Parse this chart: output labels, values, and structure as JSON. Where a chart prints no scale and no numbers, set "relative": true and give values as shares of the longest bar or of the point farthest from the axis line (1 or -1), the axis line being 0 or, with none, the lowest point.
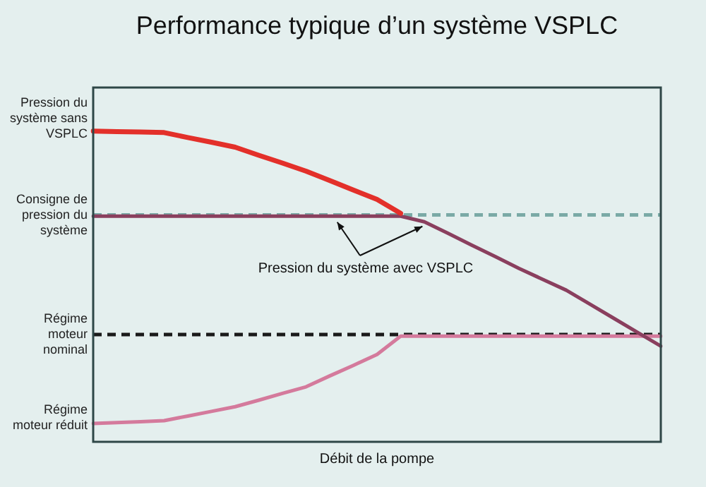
{
  "chart_data": {
    "type": "line",
    "title": "Performance typique d’un système VSPLC",
    "xlabel": "Débit de la pompe",
    "relative": true,
    "tick_labels": false,
    "grid": false,
    "legend": false,
    "marker": "none",
    "line_style": "solid",
    "categories": [
      null,
      null,
      null,
      null,
      null,
      null,
      null,
      null,
      null,
      null,
      null,
      null,
      null,
      null,
      null,
      null,
      null,
      null,
      null,
      null,
      null,
      null,
      null,
      null,
      null
    ],
    "series": [
      {
        "color": "#e3302a",
        "values": [
          1,
          0.998,
          0.997,
          0.995,
          0.979,
          0.964,
          0.948,
          0.922,
          0.897,
          0.871,
          0.841,
          0.81,
          0.78,
          0.735,
          null,
          null,
          null,
          null,
          null,
          null,
          null,
          null,
          null,
          null,
          null
        ]
      },
      {
        "color": "#8a3f5e",
        "values": [
          0.726,
          0.726,
          0.726,
          0.726,
          0.726,
          0.726,
          0.726,
          0.726,
          0.726,
          0.726,
          0.726,
          0.726,
          0.726,
          0.726,
          0.708,
          0.671,
          0.633,
          0.596,
          0.558,
          0.523,
          0.488,
          0.443,
          0.398,
          0.353,
          0.308
        ]
      },
      {
        "color": "#d47a9c",
        "values": [
          0.059,
          0.062,
          0.065,
          0.068,
          0.083,
          0.098,
          0.113,
          0.134,
          0.156,
          0.177,
          0.212,
          0.246,
          0.281,
          0.34,
          0.34,
          0.34,
          0.34,
          0.34,
          0.34,
          0.34,
          0.34,
          0.34,
          0.34,
          0.34,
          0.34
        ]
      }
    ],
    "ref_lines": [
      {
        "axis": "y",
        "value": 0.73,
        "label": "Consigne de pression du système",
        "color": "#7aaaa6",
        "line_style": "dashed"
      },
      {
        "axis": "y",
        "value": 0.345,
        "label": "Régime moteur nominal",
        "color": "#1a1a1a",
        "line_style": "dashed"
      }
    ],
    "annotations": [
      "Pression du système sans VSPLC",
      "Régime moteur réduit",
      "Pression du système avec VSPLC"
    ]
  }
}
